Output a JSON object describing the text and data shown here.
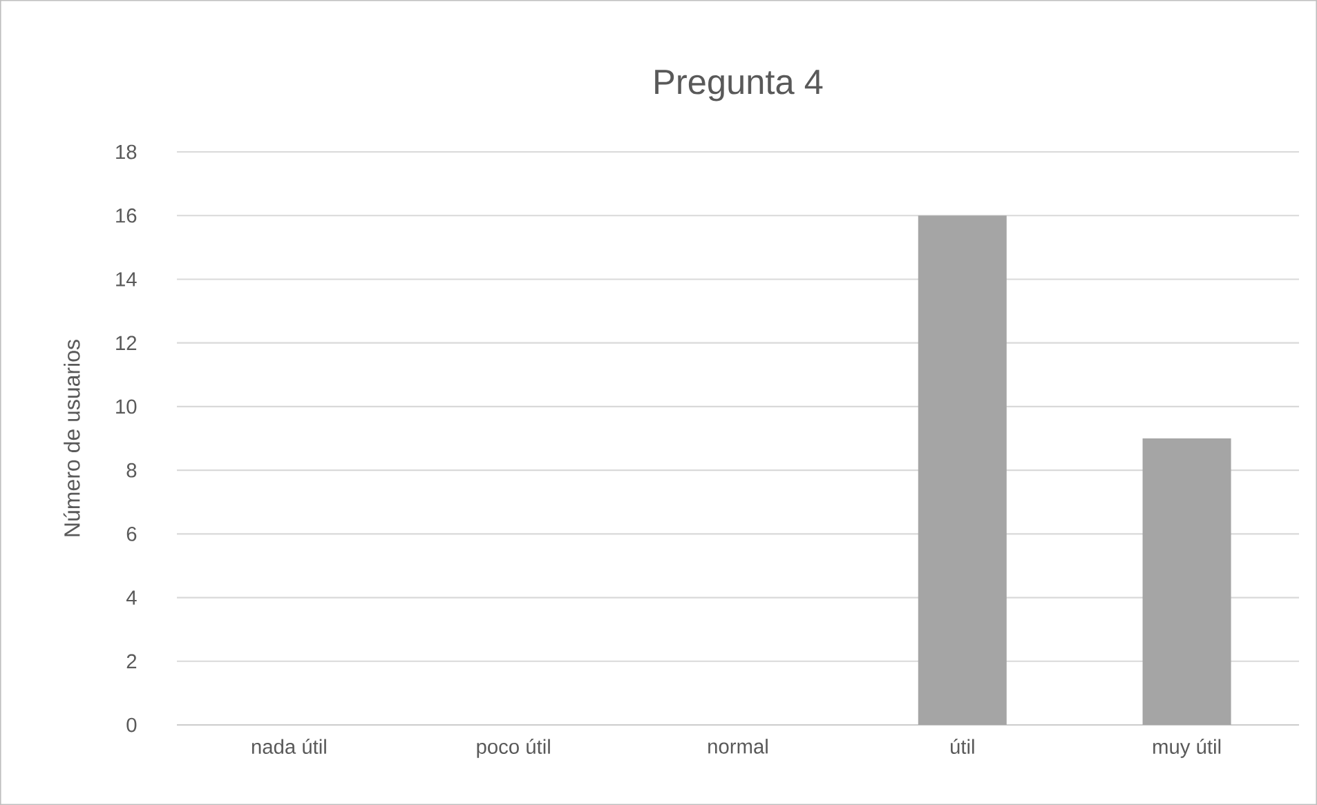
{
  "chart_data": {
    "type": "bar",
    "title": "Pregunta 4",
    "ylabel": "Número de usuarios",
    "categories": [
      "nada útil",
      "poco útil",
      "normal",
      "útil",
      "muy útil"
    ],
    "values": [
      0,
      0,
      0,
      16,
      9
    ],
    "color": "#a5a5a5",
    "ylim": [
      0,
      18
    ],
    "yticks": [
      0,
      2,
      4,
      6,
      8,
      10,
      12,
      14,
      16,
      18
    ],
    "grid": "y"
  }
}
